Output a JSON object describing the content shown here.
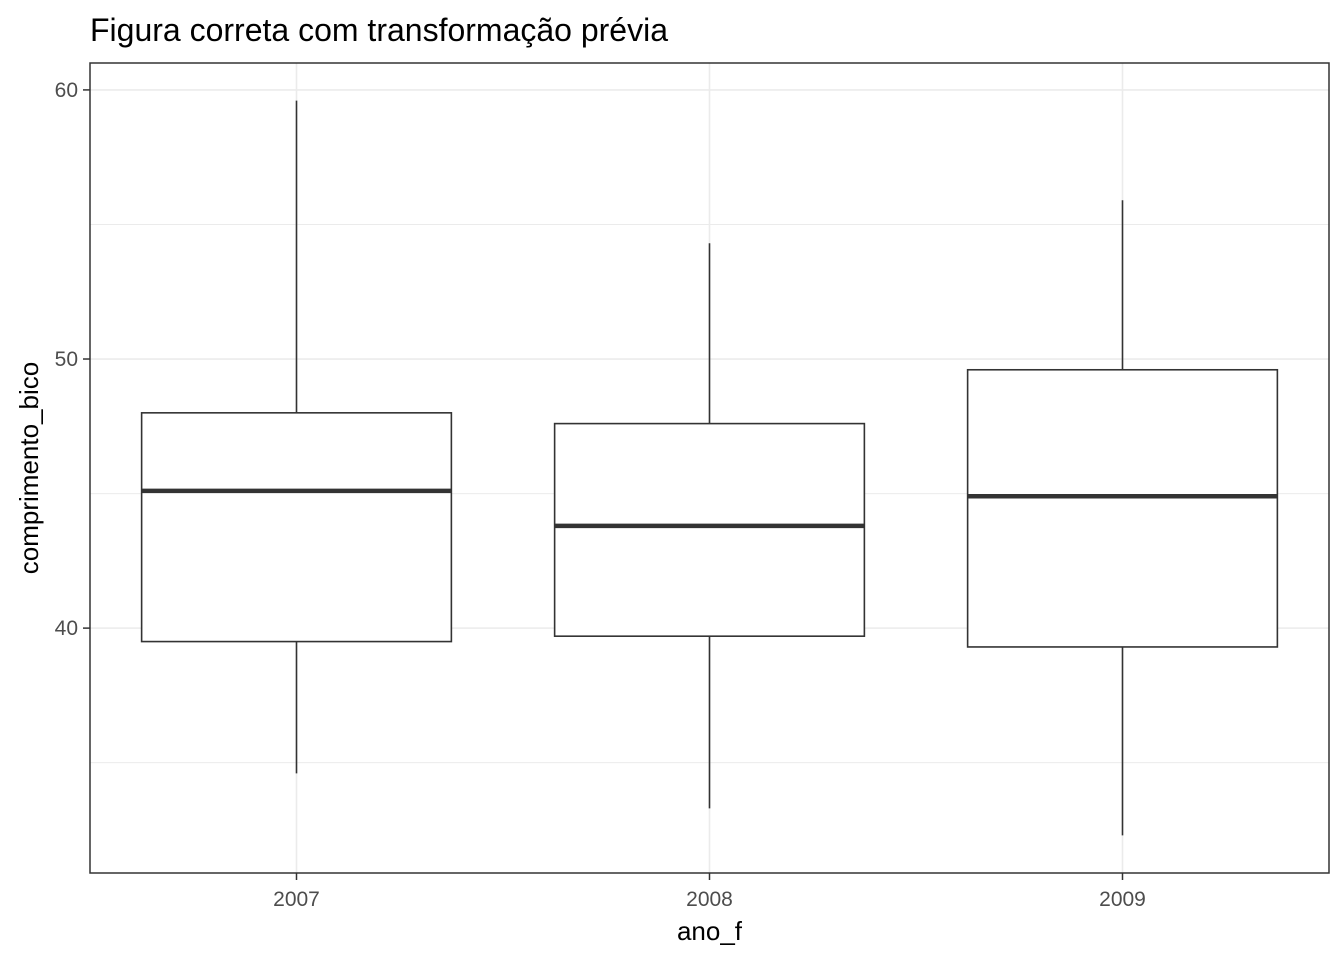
{
  "chart_data": {
    "type": "boxplot",
    "title": "Figura correta com transformação prévia",
    "xlabel": "ano_f",
    "ylabel": "comprimento_bico",
    "categories": [
      "2007",
      "2008",
      "2009"
    ],
    "boxes": [
      {
        "category": "2007",
        "min": 34.6,
        "q1": 39.5,
        "median": 45.1,
        "q3": 48.0,
        "max": 59.6
      },
      {
        "category": "2008",
        "min": 33.3,
        "q1": 39.7,
        "median": 43.8,
        "q3": 47.6,
        "max": 54.3
      },
      {
        "category": "2009",
        "min": 32.3,
        "q1": 39.3,
        "median": 44.9,
        "q3": 49.6,
        "max": 55.9
      }
    ],
    "ylim": [
      30.9,
      61.0
    ],
    "y_ticks": [
      40,
      50,
      60
    ],
    "y_tick_labels": [
      "40",
      "50",
      "60"
    ],
    "y_minor_ticks": [
      35,
      45,
      55
    ],
    "grid": true,
    "theme_colors": {
      "box_line": "#333333",
      "grid": "#ebebeb",
      "panel_border": "#333333",
      "tick_label": "#4d4d4d"
    }
  }
}
